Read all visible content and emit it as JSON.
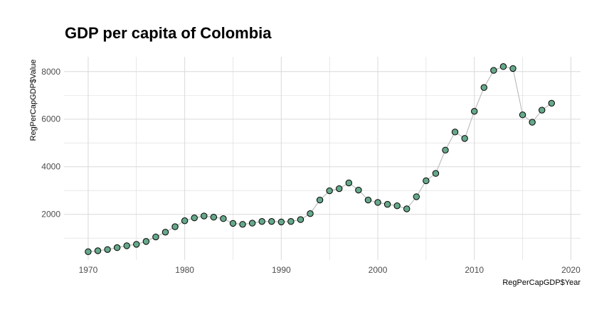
{
  "chart_data": {
    "type": "line",
    "title": "GDP per capita of Colombia",
    "xlabel": "RegPerCapGDP$Year",
    "ylabel": "RegPerCapGDP$Value",
    "xlim": [
      1967.5,
      2021
    ],
    "ylim": [
      80,
      8620
    ],
    "x_ticks": [
      1970,
      1980,
      1990,
      2000,
      2010,
      2020
    ],
    "y_ticks": [
      2000,
      4000,
      6000,
      8000
    ],
    "grid": true,
    "legend": "none",
    "colors": {
      "point_fill": "#66a88a",
      "point_stroke": "#000000",
      "line": "#b3b3b3",
      "grid": "#d9d9d9"
    },
    "x": [
      1970,
      1971,
      1972,
      1973,
      1974,
      1975,
      1976,
      1977,
      1978,
      1979,
      1980,
      1981,
      1982,
      1983,
      1984,
      1985,
      1986,
      1987,
      1988,
      1989,
      1990,
      1991,
      1992,
      1993,
      1994,
      1995,
      1996,
      1997,
      1998,
      1999,
      2000,
      2001,
      2002,
      2003,
      2004,
      2005,
      2006,
      2007,
      2008,
      2009,
      2010,
      2011,
      2012,
      2013,
      2014,
      2015,
      2016,
      2017,
      2018
    ],
    "y": [
      430,
      470,
      520,
      600,
      680,
      740,
      860,
      1050,
      1250,
      1480,
      1730,
      1850,
      1930,
      1880,
      1820,
      1620,
      1580,
      1630,
      1700,
      1700,
      1680,
      1700,
      1780,
      2030,
      2600,
      2990,
      3080,
      3320,
      3020,
      2600,
      2500,
      2420,
      2360,
      2230,
      2740,
      3410,
      3720,
      4700,
      5460,
      5190,
      6330,
      7330,
      8050,
      8210,
      8130,
      6180,
      5870,
      6380,
      6670
    ]
  }
}
